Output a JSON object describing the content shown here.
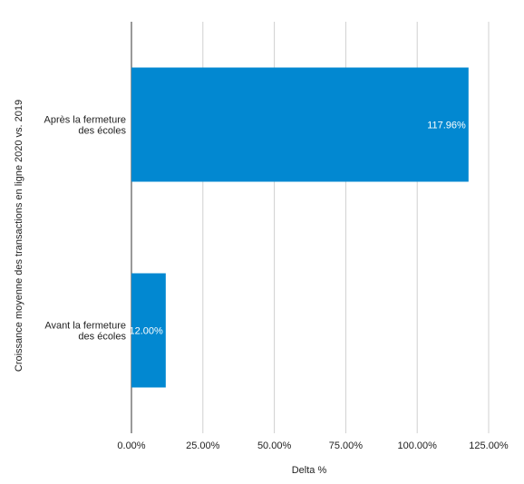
{
  "chart_data": {
    "type": "bar",
    "orientation": "horizontal",
    "title": "",
    "xlabel": "Delta %",
    "ylabel": "Croissance moyenne des transactions en ligne 2020 vs. 2019",
    "categories": [
      [
        "Après la fermeture",
        "des écoles"
      ],
      [
        "Avant la fermeture",
        "des écoles"
      ]
    ],
    "values": [
      117.96,
      12.0
    ],
    "data_labels": [
      "117.96%",
      "12.00%"
    ],
    "xlim": [
      0,
      125
    ],
    "xticks": [
      0,
      25,
      50,
      75,
      100,
      125
    ],
    "xtick_labels": [
      "0.00%",
      "25.00%",
      "50.00%",
      "75.00%",
      "100.00%",
      "125.00%"
    ],
    "grid": true,
    "bar_color": "#0288d1",
    "grid_color": "#d0d0d0",
    "axis_color": "#333333"
  }
}
